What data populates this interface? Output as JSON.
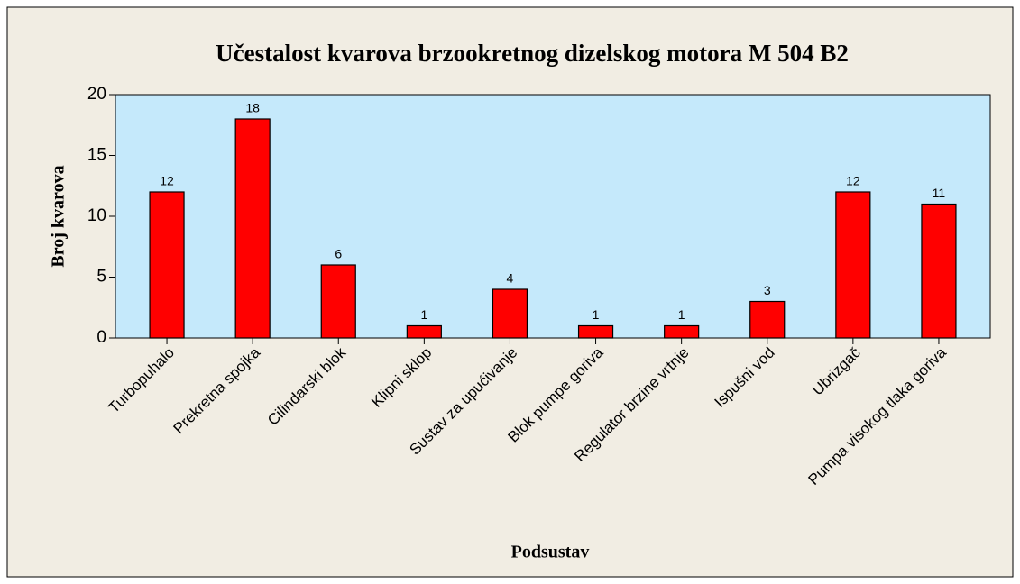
{
  "chart_data": {
    "type": "bar",
    "title": "Učestalost kvarova brzookretnog dizelskog motora M 504 B2",
    "x_label": "Podsustav",
    "y_label": "Broj kvarova",
    "categories": [
      "Turbopuhalo",
      "Prekretna spojka",
      "Cilindarski blok",
      "Klipni sklop",
      "Sustav za upućivanje",
      "Blok pumpe goriva",
      "Regulator brzine vrtnje",
      "Ispušni vod",
      "Ubrizgač",
      "Pumpa visokog tlaka goriva"
    ],
    "values": [
      12,
      18,
      6,
      1,
      4,
      1,
      1,
      3,
      12,
      11
    ],
    "color": "#ff0000",
    "ylim": [
      0,
      20
    ],
    "yticks": [
      0,
      5,
      10,
      15,
      20
    ]
  }
}
